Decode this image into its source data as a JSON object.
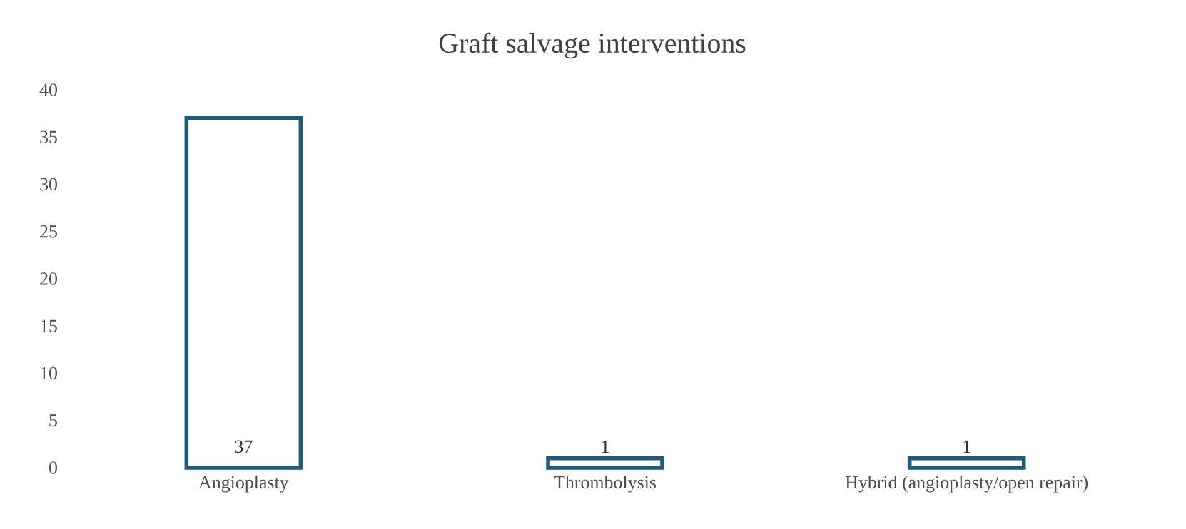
{
  "chart_data": {
    "type": "bar",
    "title": "Graft salvage interventions",
    "categories": [
      "Angioplasty",
      "Thrombolysis",
      "Hybrid (angioplasty/open repair)"
    ],
    "values": [
      37,
      1,
      1
    ],
    "color": "#1f5b7a",
    "ylim": [
      0,
      40
    ],
    "yticks": [
      0,
      5,
      10,
      15,
      20,
      25,
      30,
      35,
      40
    ],
    "grid": false,
    "data_labels": true
  }
}
